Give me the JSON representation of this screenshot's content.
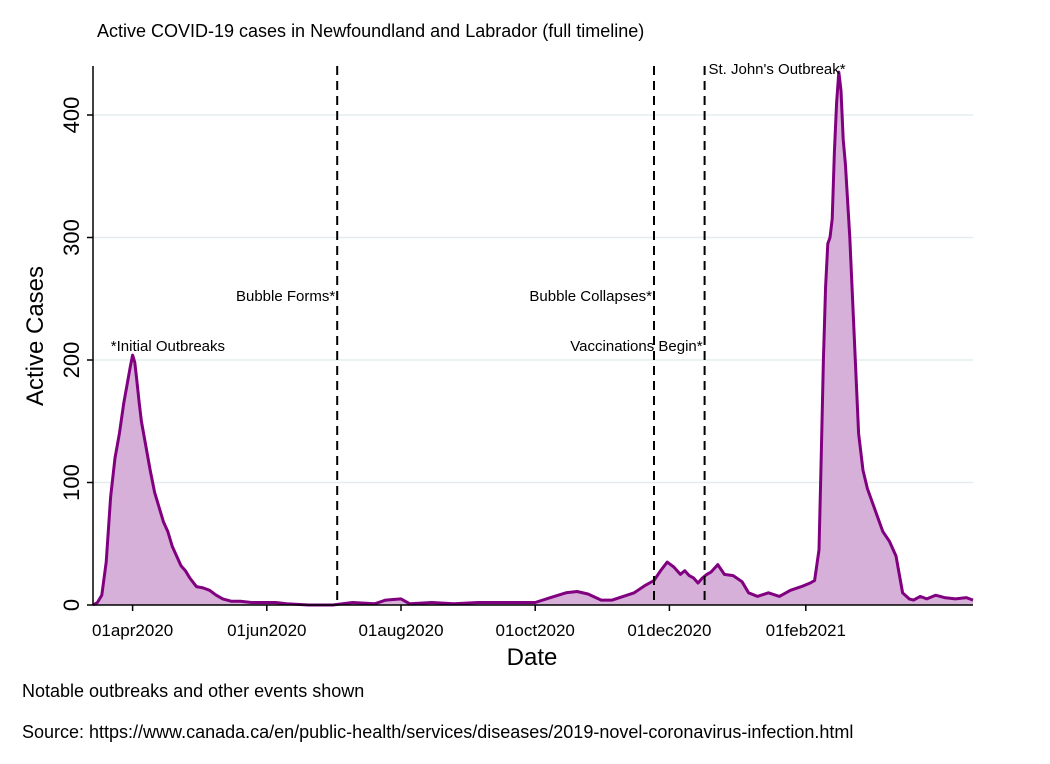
{
  "chart_data": {
    "type": "area",
    "title": "Active COVID-19 cases in Newfoundland and Labrador (full timeline)",
    "xlabel": "Date",
    "ylabel": "Active Cases",
    "xlim": [
      "2020-03-14",
      "2021-04-18"
    ],
    "ylim": [
      0,
      440
    ],
    "yticks": [
      0,
      100,
      200,
      300,
      400
    ],
    "xticks": [
      {
        "date": "2020-04-01",
        "label": "01apr2020"
      },
      {
        "date": "2020-06-01",
        "label": "01jun2020"
      },
      {
        "date": "2020-08-01",
        "label": "01aug2020"
      },
      {
        "date": "2020-10-01",
        "label": "01oct2020"
      },
      {
        "date": "2020-12-01",
        "label": "01dec2020"
      },
      {
        "date": "2021-02-01",
        "label": "01feb2021"
      }
    ],
    "grid": true,
    "line_color": "#800080",
    "fill_color": "#d6b0d9",
    "series": [
      {
        "x": [
          "2020-03-14",
          "2020-03-16",
          "2020-03-18",
          "2020-03-20",
          "2020-03-22",
          "2020-03-24",
          "2020-03-26",
          "2020-03-28",
          "2020-03-30",
          "2020-03-31",
          "2020-04-01",
          "2020-04-02",
          "2020-04-03",
          "2020-04-04",
          "2020-04-05",
          "2020-04-07",
          "2020-04-09",
          "2020-04-11",
          "2020-04-13",
          "2020-04-15",
          "2020-04-17",
          "2020-04-19",
          "2020-04-21",
          "2020-04-23",
          "2020-04-25",
          "2020-04-27",
          "2020-04-30",
          "2020-05-03",
          "2020-05-06",
          "2020-05-09",
          "2020-05-12",
          "2020-05-16",
          "2020-05-20",
          "2020-05-25",
          "2020-05-30",
          "2020-06-05",
          "2020-06-10",
          "2020-06-20",
          "2020-07-01",
          "2020-07-10",
          "2020-07-20",
          "2020-07-25",
          "2020-08-01",
          "2020-08-05",
          "2020-08-15",
          "2020-08-25",
          "2020-09-05",
          "2020-09-20",
          "2020-10-01",
          "2020-10-08",
          "2020-10-15",
          "2020-10-20",
          "2020-10-25",
          "2020-10-31",
          "2020-11-05",
          "2020-11-10",
          "2020-11-15",
          "2020-11-20",
          "2020-11-24",
          "2020-11-27",
          "2020-11-30",
          "2020-12-03",
          "2020-12-06",
          "2020-12-08",
          "2020-12-10",
          "2020-12-12",
          "2020-12-14",
          "2020-12-16",
          "2020-12-18",
          "2020-12-20",
          "2020-12-23",
          "2020-12-26",
          "2020-12-30",
          "2021-01-03",
          "2021-01-06",
          "2021-01-10",
          "2021-01-15",
          "2021-01-20",
          "2021-01-25",
          "2021-01-30",
          "2021-02-03",
          "2021-02-05",
          "2021-02-07",
          "2021-02-08",
          "2021-02-09",
          "2021-02-10",
          "2021-02-11",
          "2021-02-12",
          "2021-02-13",
          "2021-02-14",
          "2021-02-15",
          "2021-02-16",
          "2021-02-17",
          "2021-02-18",
          "2021-02-19",
          "2021-02-21",
          "2021-02-23",
          "2021-02-25",
          "2021-02-27",
          "2021-03-01",
          "2021-03-03",
          "2021-03-05",
          "2021-03-08",
          "2021-03-11",
          "2021-03-14",
          "2021-03-17",
          "2021-03-20",
          "2021-03-22",
          "2021-03-25",
          "2021-03-28",
          "2021-04-01",
          "2021-04-05",
          "2021-04-10",
          "2021-04-15",
          "2021-04-18"
        ],
        "y": [
          0,
          2,
          8,
          35,
          88,
          120,
          140,
          165,
          185,
          195,
          204,
          198,
          182,
          165,
          150,
          130,
          110,
          92,
          80,
          68,
          60,
          48,
          40,
          32,
          28,
          22,
          15,
          14,
          12,
          8,
          5,
          3,
          3,
          2,
          2,
          2,
          1,
          0,
          0,
          2,
          1,
          4,
          5,
          1,
          2,
          1,
          2,
          2,
          2,
          6,
          10,
          11,
          9,
          4,
          4,
          7,
          10,
          16,
          20,
          28,
          35,
          31,
          25,
          28,
          24,
          22,
          18,
          22,
          25,
          27,
          33,
          25,
          24,
          19,
          10,
          7,
          10,
          7,
          12,
          15,
          18,
          20,
          45,
          120,
          200,
          260,
          295,
          300,
          315,
          370,
          410,
          435,
          420,
          380,
          360,
          300,
          220,
          140,
          110,
          95,
          85,
          75,
          60,
          52,
          40,
          10,
          5,
          4,
          7,
          5,
          8,
          6,
          5,
          6,
          4
        ]
      }
    ],
    "annotations": [
      {
        "date": "2020-03-18",
        "label": "*Initial Outbreaks",
        "line": false
      },
      {
        "date": "2020-07-03",
        "label": "Bubble Forms*",
        "line": true
      },
      {
        "date": "2020-11-24",
        "label": "Bubble Collapses*",
        "line": true
      },
      {
        "date": "2020-12-17",
        "label": "Vaccinations Begin*",
        "line": true
      },
      {
        "date": "2020-12-17",
        "label": "St. John's Outbreak*",
        "line": false
      }
    ]
  },
  "notes": {
    "line1": "Notable outbreaks and other events shown",
    "line2": "Source: https://www.canada.ca/en/public-health/services/diseases/2019-novel-coronavirus-infection.html"
  }
}
